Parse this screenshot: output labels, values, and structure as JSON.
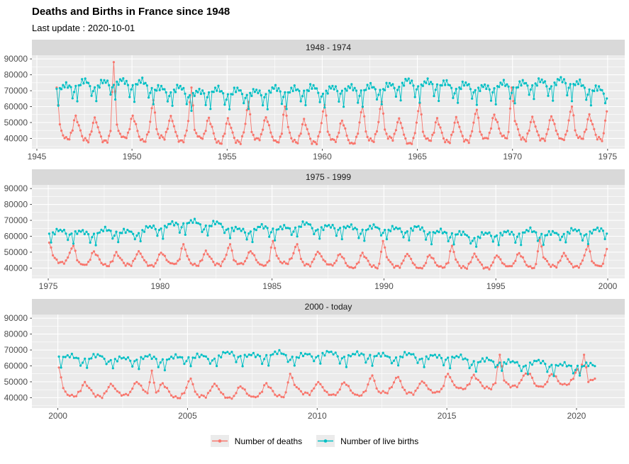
{
  "page": {
    "title": "Deaths and Births in France since 1948",
    "subtitle": "Last update : 2020-10-01"
  },
  "colors": {
    "deaths": "#F8766D",
    "births": "#00BFC4",
    "panel_bg": "#EBEBEB",
    "strip_bg": "#D9D9D9",
    "strip_text": "#1A1A1A",
    "grid": "#FFFFFF",
    "axis_text": "#4D4D4D",
    "tick_mark": "#333333",
    "legend_key_bg": "#EBEBEB",
    "page_bg": "#FFFFFF"
  },
  "legend": {
    "items": [
      {
        "label": "Number of deaths",
        "color": "#F8766D"
      },
      {
        "label": "Number of live births",
        "color": "#00BFC4"
      }
    ]
  },
  "chart_data": {
    "type": "line",
    "title": "Deaths and Births in France since 1948",
    "subtitle": "Last update : 2020-10-01",
    "frequency": "monthly",
    "grid": true,
    "legend_position": "bottom",
    "y_axis": {
      "lim": [
        33500,
        92300
      ],
      "ticks": [
        40000,
        50000,
        60000,
        70000,
        80000,
        90000
      ],
      "minor_step": 5000
    },
    "series": [
      {
        "name": "Number of deaths",
        "color": "#F8766D"
      },
      {
        "name": "Number of live births",
        "color": "#00BFC4"
      }
    ],
    "seasonal_pattern_by_month": {
      "deaths": [
        4200,
        2600,
        1500,
        -300,
        -1700,
        -3000,
        -2600,
        -3000,
        -3400,
        -1300,
        -200,
        2800
      ],
      "births": [
        300,
        -5000,
        800,
        300,
        2300,
        1300,
        2600,
        1100,
        1600,
        400,
        -3300,
        -1100
      ]
    },
    "noise_amplitude": {
      "deaths": 900,
      "births": 1200
    },
    "panels": [
      {
        "label": "1948 - 1974",
        "xlim": [
          1944.74,
          1975.9
        ],
        "xticks": [
          1945,
          1950,
          1955,
          1960,
          1965,
          1970,
          1975
        ],
        "data_start": 1946.03,
        "data_end": 1974.97,
        "deaths": {
          "year0": 1946,
          "pattern_scale": 2.0,
          "annual_monthly_mean": [
            45500,
            45500,
            43500,
            47000,
            44500,
            46500,
            44500,
            46500,
            43500,
            43500,
            45500,
            44500,
            43500,
            43500,
            45000,
            42500,
            45000,
            46000,
            43000,
            45000,
            44000,
            44500,
            45500,
            47500,
            45000,
            45500,
            45500,
            46000,
            46000
          ],
          "spikes": [
            [
              1946.04,
              72000
            ],
            [
              1949.04,
              88000
            ],
            [
              1951.12,
              64000
            ],
            [
              1953.12,
              72000
            ],
            [
              1956.12,
              63000
            ],
            [
              1958.04,
              60000
            ],
            [
              1960.12,
              61000
            ],
            [
              1962.12,
              60000
            ],
            [
              1963.12,
              63000
            ],
            [
              1965.12,
              62000
            ],
            [
              1968.12,
              58000
            ],
            [
              1969.96,
              72000
            ],
            [
              1973.12,
              60000
            ],
            [
              1974.96,
              57000
            ]
          ]
        },
        "births": {
          "year0": 1946,
          "pattern_scale": 1.8,
          "annual_monthly_mean": [
            70500,
            72500,
            72500,
            73500,
            72500,
            69000,
            68500,
            66500,
            68000,
            67000,
            67000,
            68000,
            68500,
            69000,
            68500,
            69500,
            69000,
            71000,
            73000,
            72500,
            72000,
            70500,
            70000,
            71000,
            72000,
            73000,
            73500,
            72500,
            67500
          ],
          "spikes": []
        }
      },
      {
        "label": "1975 - 1999",
        "xlim": [
          1974.27,
          2000.76
        ],
        "xticks": [
          1975,
          1980,
          1985,
          1990,
          1995,
          2000
        ],
        "data_start": 1975.03,
        "data_end": 1999.97,
        "deaths": {
          "year0": 1975,
          "pattern_scale": 1.15,
          "annual_monthly_mean": [
            46500,
            46000,
            45000,
            45500,
            45200,
            45800,
            45800,
            45300,
            46300,
            45300,
            46300,
            45900,
            45300,
            43900,
            44200,
            44100,
            43900,
            43600,
            44200,
            43200,
            44500,
            44200,
            44200,
            44700,
            44600
          ],
          "spikes": [
            [
              1975.04,
              56000
            ],
            [
              1976.12,
              54000
            ],
            [
              1981.04,
              55000
            ],
            [
              1983.12,
              55000
            ],
            [
              1985.04,
              57000
            ],
            [
              1986.12,
              55000
            ],
            [
              1989.96,
              57000
            ],
            [
              1993.04,
              54000
            ],
            [
              1996.96,
              58000
            ],
            [
              1999.12,
              54000
            ],
            [
              1999.96,
              52000
            ]
          ]
        },
        "births": {
          "year0": 1975,
          "pattern_scale": 1.2,
          "annual_monthly_mean": [
            62000,
            60500,
            62000,
            61500,
            63000,
            66500,
            67000,
            66500,
            62500,
            63500,
            64000,
            65500,
            64500,
            64000,
            63500,
            63500,
            63000,
            61500,
            59500,
            59300,
            60900,
            61200,
            60500,
            61500,
            62200
          ],
          "spikes": []
        }
      },
      {
        "label": "2000 - today",
        "xlim": [
          1999.0,
          2021.86
        ],
        "xticks": [
          2000,
          2005,
          2010,
          2015,
          2020
        ],
        "data_start": 2000.03,
        "data_end": 2020.72,
        "deaths": {
          "year0": 2000,
          "pattern_scale": 1.1,
          "annual_monthly_mean": [
            44500,
            44300,
            44600,
            46200,
            42900,
            44500,
            43200,
            43500,
            44500,
            45500,
            45500,
            44500,
            46500,
            46500,
            46000,
            49500,
            49000,
            50500,
            50500,
            51000,
            54000
          ],
          "spikes": [
            [
              2000.04,
              59000
            ],
            [
              2003.62,
              57000
            ],
            [
              2005.12,
              52000
            ],
            [
              2008.96,
              55000
            ],
            [
              2012.12,
              54000
            ],
            [
              2013.12,
              53000
            ],
            [
              2015.04,
              55000
            ],
            [
              2017.04,
              67000
            ],
            [
              2018.21,
              55000
            ],
            [
              2019.12,
              54000
            ],
            [
              2020.29,
              67000
            ],
            [
              2020.71,
              52000
            ]
          ]
        },
        "births": {
          "year0": 2000,
          "pattern_scale": 1.1,
          "annual_monthly_mean": [
            64500,
            64000,
            63500,
            63500,
            64000,
            64500,
            66000,
            65500,
            66000,
            65500,
            66500,
            65500,
            65500,
            65000,
            65000,
            63500,
            62000,
            61000,
            60500,
            59500,
            58500
          ],
          "spikes": []
        }
      }
    ]
  }
}
